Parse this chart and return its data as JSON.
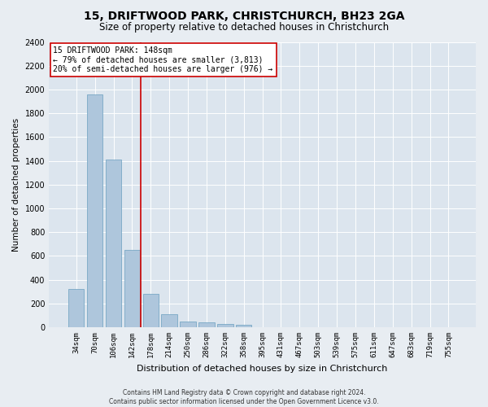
{
  "title": "15, DRIFTWOOD PARK, CHRISTCHURCH, BH23 2GA",
  "subtitle": "Size of property relative to detached houses in Christchurch",
  "xlabel": "Distribution of detached houses by size in Christchurch",
  "ylabel": "Number of detached properties",
  "footer_line1": "Contains HM Land Registry data © Crown copyright and database right 2024.",
  "footer_line2": "Contains public sector information licensed under the Open Government Licence v3.0.",
  "categories": [
    "34sqm",
    "70sqm",
    "106sqm",
    "142sqm",
    "178sqm",
    "214sqm",
    "250sqm",
    "286sqm",
    "322sqm",
    "358sqm",
    "395sqm",
    "431sqm",
    "467sqm",
    "503sqm",
    "539sqm",
    "575sqm",
    "611sqm",
    "647sqm",
    "683sqm",
    "719sqm",
    "755sqm"
  ],
  "values": [
    325,
    1960,
    1410,
    650,
    280,
    107,
    50,
    40,
    30,
    20,
    0,
    0,
    0,
    0,
    0,
    0,
    0,
    0,
    0,
    0,
    0
  ],
  "bar_color": "#aec6dc",
  "bar_edge_color": "#6a9fc0",
  "annotation_line1": "15 DRIFTWOOD PARK: 148sqm",
  "annotation_line2": "← 79% of detached houses are smaller (3,813)",
  "annotation_line3": "20% of semi-detached houses are larger (976) →",
  "annotation_box_facecolor": "#ffffff",
  "annotation_box_edgecolor": "#cc0000",
  "vline_color": "#cc0000",
  "vline_pos": 3.48,
  "ylim": [
    0,
    2400
  ],
  "yticks": [
    0,
    200,
    400,
    600,
    800,
    1000,
    1200,
    1400,
    1600,
    1800,
    2000,
    2200,
    2400
  ],
  "bg_color": "#e8edf2",
  "plot_bg_color": "#dce5ee",
  "grid_color": "#ffffff",
  "title_fontsize": 10,
  "subtitle_fontsize": 8.5,
  "ylabel_fontsize": 7.5,
  "xlabel_fontsize": 8,
  "tick_fontsize": 6.5,
  "ytick_fontsize": 7,
  "annotation_fontsize": 7,
  "footer_fontsize": 5.5
}
